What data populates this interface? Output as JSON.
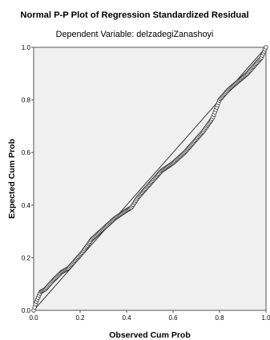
{
  "chart_data": {
    "type": "scatter",
    "title": "Normal P-P Plot of Regression Standardized Residual",
    "subtitle": "Dependent Variable: delzadegiZanashoyi",
    "xlabel": "Observed Cum Prob",
    "ylabel": "Expected Cum Prob",
    "xlim": [
      0,
      1
    ],
    "ylim": [
      0,
      1
    ],
    "x_ticks": [
      "0.0",
      "0.2",
      "0.4",
      "0.6",
      "0.8",
      "1.0"
    ],
    "y_ticks": [
      "0.0",
      "0.2",
      "0.4",
      "0.6",
      "0.8",
      "1.0"
    ],
    "grid": false,
    "legend": "none",
    "reference_line": {
      "from": [
        0,
        0
      ],
      "to": [
        1,
        1
      ]
    },
    "colors": {
      "plot_background": "#f0f0f0",
      "marker_stroke": "#333333",
      "marker_fill": "#ffffff",
      "reference_line": "#333333",
      "frame": "#555555"
    },
    "curve_anchors": [
      [
        0.0,
        0.0
      ],
      [
        0.01,
        0.03
      ],
      [
        0.02,
        0.05
      ],
      [
        0.03,
        0.07
      ],
      [
        0.05,
        0.08
      ],
      [
        0.08,
        0.11
      ],
      [
        0.12,
        0.145
      ],
      [
        0.15,
        0.16
      ],
      [
        0.18,
        0.19
      ],
      [
        0.21,
        0.22
      ],
      [
        0.25,
        0.27
      ],
      [
        0.3,
        0.31
      ],
      [
        0.35,
        0.35
      ],
      [
        0.4,
        0.38
      ],
      [
        0.42,
        0.39
      ],
      [
        0.45,
        0.43
      ],
      [
        0.5,
        0.48
      ],
      [
        0.55,
        0.53
      ],
      [
        0.6,
        0.56
      ],
      [
        0.65,
        0.6
      ],
      [
        0.7,
        0.65
      ],
      [
        0.73,
        0.68
      ],
      [
        0.77,
        0.73
      ],
      [
        0.8,
        0.8
      ],
      [
        0.84,
        0.84
      ],
      [
        0.88,
        0.87
      ],
      [
        0.92,
        0.9
      ],
      [
        0.95,
        0.93
      ],
      [
        0.98,
        0.96
      ],
      [
        1.0,
        1.0
      ]
    ],
    "n_points": 260
  }
}
